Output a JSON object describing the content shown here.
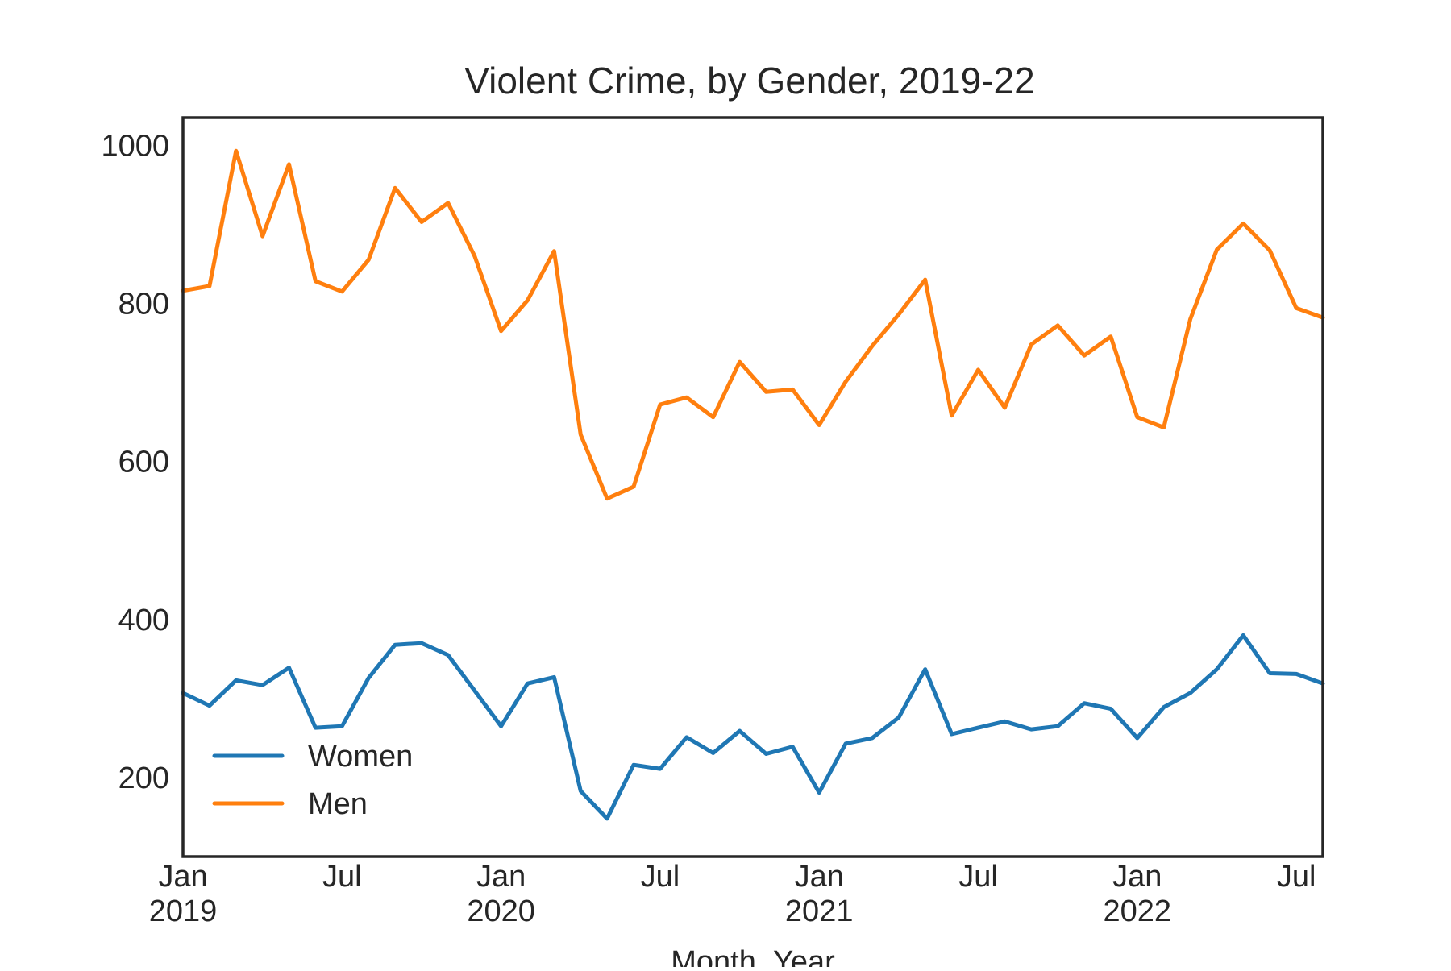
{
  "chart_data": {
    "type": "line",
    "title": "Violent Crime, by Gender, 2019-22",
    "xlabel": "Month_Year",
    "ylabel": "",
    "x_start": "2019-01",
    "x_end": "2022-08",
    "ylim": [
      100,
      1035
    ],
    "yticks": [
      200,
      400,
      600,
      800,
      1000
    ],
    "xticks": [
      {
        "month": "2019-01",
        "label": "Jan",
        "sublabel": "2019"
      },
      {
        "month": "2019-07",
        "label": "Jul",
        "sublabel": ""
      },
      {
        "month": "2020-01",
        "label": "Jan",
        "sublabel": "2020"
      },
      {
        "month": "2020-07",
        "label": "Jul",
        "sublabel": ""
      },
      {
        "month": "2021-01",
        "label": "Jan",
        "sublabel": "2021"
      },
      {
        "month": "2021-07",
        "label": "Jul",
        "sublabel": ""
      },
      {
        "month": "2022-01",
        "label": "Jan",
        "sublabel": "2022"
      },
      {
        "month": "2022-07",
        "label": "Jul",
        "sublabel": ""
      }
    ],
    "grid": false,
    "legend_position": "lower-left",
    "x": [
      "2019-01",
      "2019-02",
      "2019-03",
      "2019-04",
      "2019-05",
      "2019-06",
      "2019-07",
      "2019-08",
      "2019-09",
      "2019-10",
      "2019-11",
      "2019-12",
      "2020-01",
      "2020-02",
      "2020-03",
      "2020-04",
      "2020-05",
      "2020-06",
      "2020-07",
      "2020-08",
      "2020-09",
      "2020-10",
      "2020-11",
      "2020-12",
      "2021-01",
      "2021-02",
      "2021-03",
      "2021-04",
      "2021-05",
      "2021-06",
      "2021-07",
      "2021-08",
      "2021-09",
      "2021-10",
      "2021-11",
      "2021-12",
      "2022-01",
      "2022-02",
      "2022-03",
      "2022-04",
      "2022-05",
      "2022-06",
      "2022-07",
      "2022-08"
    ],
    "series": [
      {
        "name": "Women",
        "color": "#1f77b4",
        "values": [
          307,
          291,
          323,
          317,
          339,
          263,
          265,
          326,
          368,
          370,
          355,
          310,
          265,
          319,
          327,
          183,
          148,
          216,
          211,
          251,
          231,
          259,
          230,
          239,
          181,
          243,
          250,
          276,
          337,
          255,
          263,
          271,
          261,
          265,
          294,
          287,
          250,
          289,
          307,
          337,
          380,
          332,
          331,
          319
        ]
      },
      {
        "name": "Men",
        "color": "#ff7f0e",
        "values": [
          816,
          822,
          993,
          885,
          976,
          828,
          815,
          855,
          946,
          903,
          927,
          860,
          765,
          804,
          866,
          634,
          553,
          568,
          672,
          681,
          656,
          726,
          688,
          691,
          646,
          701,
          746,
          786,
          830,
          658,
          716,
          668,
          748,
          772,
          734,
          758,
          656,
          643,
          780,
          868,
          901,
          867,
          794,
          782
        ]
      }
    ]
  }
}
